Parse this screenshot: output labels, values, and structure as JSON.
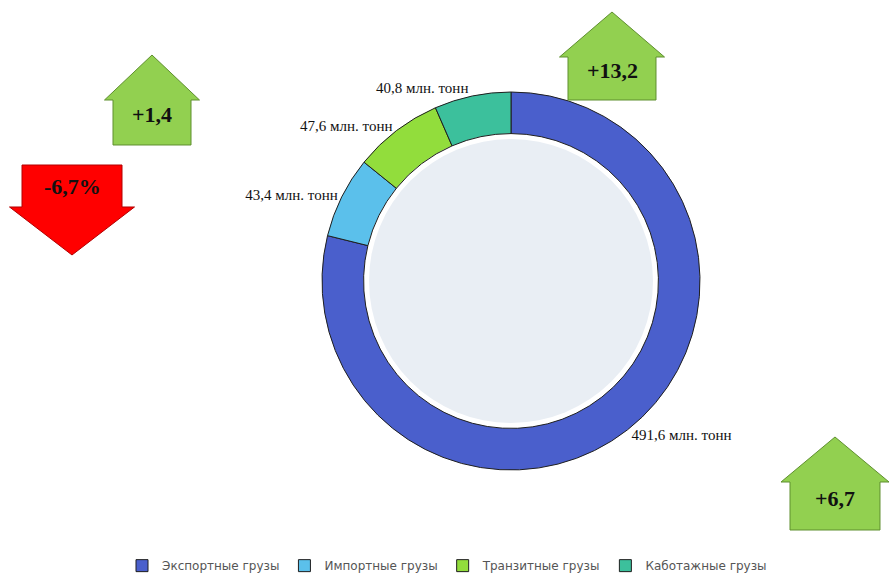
{
  "chart_data": {
    "type": "pie",
    "categories": [
      "Экспортные грузы",
      "Импортные грузы",
      "Транзитные грузы",
      "Каботажные грузы"
    ],
    "values": [
      491.6,
      43.4,
      47.6,
      40.8
    ],
    "value_labels": [
      "491,6 млн. тонн",
      "43,4 млн. тонн",
      "47,6 млн. тонн",
      "40,8 млн. тонн"
    ],
    "colors": [
      "#4a5fcc",
      "#5bc0eb",
      "#92dd3c",
      "#3cc09c"
    ],
    "data_labels": true,
    "legend": "bottom",
    "annotations": [
      {
        "category": "Экспортные грузы",
        "value": 6.7,
        "label": "+6,7"
      },
      {
        "category": "Импортные грузы",
        "value": -6.7,
        "label": "-6,7%"
      },
      {
        "category": "Транзитные грузы",
        "value": 1.4,
        "label": "+1,4"
      },
      {
        "category": "Каботажные грузы",
        "value": 13.2,
        "label": "+13,2"
      }
    ]
  }
}
